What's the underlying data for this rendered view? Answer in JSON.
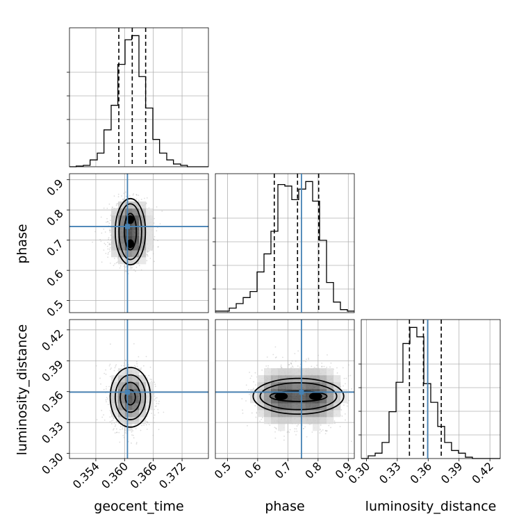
{
  "chart_data": {
    "type": "corner",
    "parameters": [
      "geocent_time",
      "phase",
      "luminosity_distance"
    ],
    "truth": {
      "geocent_time": 0.3606,
      "phase": 0.745,
      "luminosity_distance": 0.3595
    },
    "colors": {
      "truth": "#4682b4",
      "hist": "#000000",
      "grid": "#b0b0b0",
      "scatter": "#9a9a9a"
    },
    "axes": {
      "geocent_time": {
        "range": [
          0.3485,
          0.3775
        ],
        "ticks": [
          0.354,
          0.36,
          0.366,
          0.372
        ],
        "tick_labels": [
          "0.354",
          "0.360",
          "0.366",
          "0.372"
        ]
      },
      "phase": {
        "range": [
          0.46,
          0.92
        ],
        "ticks": [
          0.5,
          0.6,
          0.7,
          0.8,
          0.9
        ],
        "tick_labels": [
          "0.5",
          "0.6",
          "0.7",
          "0.8",
          "0.9"
        ]
      },
      "luminosity_distance": {
        "range": [
          0.295,
          0.43
        ],
        "ticks": [
          0.3,
          0.33,
          0.36,
          0.39,
          0.42
        ],
        "tick_labels": [
          "0.30",
          "0.33",
          "0.36",
          "0.39",
          "0.42"
        ]
      }
    },
    "histograms": {
      "geocent_time": {
        "edges": [
          0.3485,
          0.3499,
          0.3514,
          0.3528,
          0.3543,
          0.3557,
          0.3572,
          0.3586,
          0.3601,
          0.3615,
          0.363,
          0.3644,
          0.3659,
          0.3673,
          0.3688,
          0.3702,
          0.3717,
          0.3731,
          0.3746,
          0.376,
          0.3775
        ],
        "counts": [
          0.0,
          0.005,
          0.01,
          0.05,
          0.1,
          0.27,
          0.45,
          0.75,
          0.93,
          0.96,
          0.66,
          0.43,
          0.2,
          0.1,
          0.05,
          0.02,
          0.01,
          0.0,
          0.0,
          0.0
        ],
        "quantiles": [
          0.3588,
          0.3616,
          0.3644
        ]
      },
      "phase": {
        "edges": [
          0.46,
          0.483,
          0.506,
          0.529,
          0.552,
          0.575,
          0.598,
          0.621,
          0.644,
          0.667,
          0.69,
          0.713,
          0.736,
          0.759,
          0.782,
          0.805,
          0.828,
          0.851,
          0.874,
          0.897,
          0.92
        ],
        "counts": [
          0.01,
          0.01,
          0.03,
          0.06,
          0.1,
          0.14,
          0.27,
          0.39,
          0.54,
          0.85,
          0.84,
          0.75,
          0.82,
          0.87,
          0.74,
          0.48,
          0.2,
          0.07,
          0.02,
          0.01
        ],
        "quantiles": [
          0.655,
          0.732,
          0.802
        ]
      },
      "luminosity_distance": {
        "edges": [
          0.295,
          0.3017,
          0.3085,
          0.3152,
          0.322,
          0.3288,
          0.3355,
          0.3423,
          0.349,
          0.3558,
          0.3625,
          0.3693,
          0.376,
          0.3827,
          0.3895,
          0.3962,
          0.403,
          0.4098,
          0.4165,
          0.4233,
          0.43
        ],
        "counts": [
          0.0,
          0.02,
          0.04,
          0.12,
          0.35,
          0.57,
          0.86,
          0.98,
          0.91,
          0.56,
          0.42,
          0.24,
          0.12,
          0.06,
          0.04,
          0.01,
          0.0,
          0.0,
          0.0,
          0.0
        ],
        "quantiles": [
          0.3418,
          0.3554,
          0.3727
        ]
      }
    },
    "density_panels": [
      {
        "x": "geocent_time",
        "y": "phase",
        "modes": [
          [
            0.3612,
            0.768
          ],
          [
            0.3612,
            0.688
          ]
        ],
        "sigma": [
          0.0021,
          0.058
        ]
      },
      {
        "x": "geocent_time",
        "y": "luminosity_distance",
        "modes": [
          [
            0.3612,
            0.3545
          ]
        ],
        "sigma": [
          0.0021,
          0.0145
        ]
      },
      {
        "x": "phase",
        "y": "luminosity_distance",
        "modes": [
          [
            0.678,
            0.3555
          ],
          [
            0.792,
            0.3555
          ]
        ],
        "sigma": [
          0.062,
          0.0145
        ]
      }
    ],
    "grid": true
  }
}
